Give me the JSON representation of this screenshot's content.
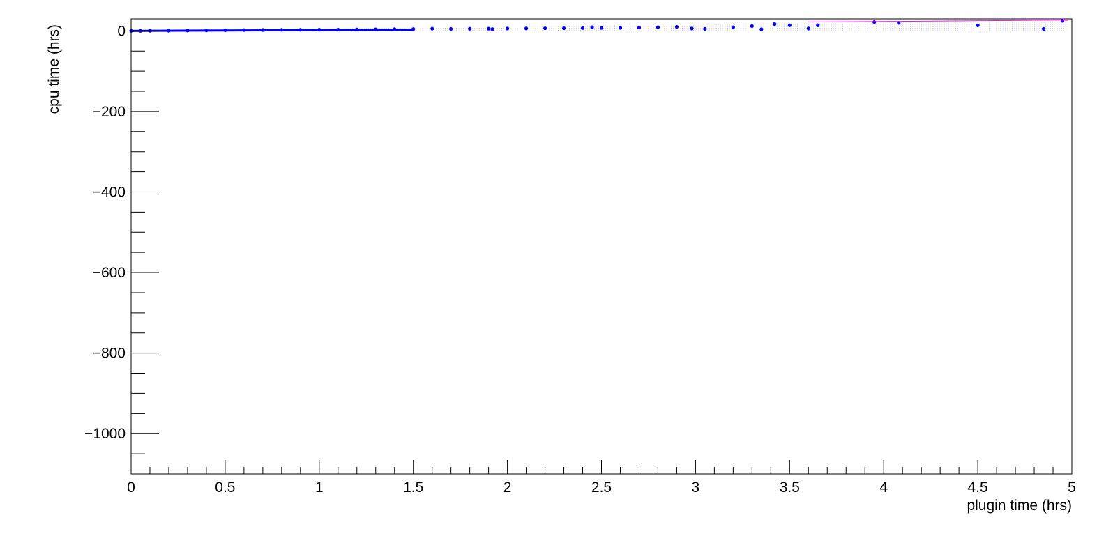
{
  "chart_data": {
    "type": "scatter",
    "title": "",
    "xlabel": "plugin time (hrs)",
    "ylabel": "cpu time (hrs)",
    "xlim": [
      0,
      5
    ],
    "ylim": [
      -1100,
      30
    ],
    "grid": false,
    "x_major_ticks": [
      0,
      0.5,
      1,
      1.5,
      2,
      2.5,
      3,
      3.5,
      4,
      4.5,
      5
    ],
    "x_tick_labels": [
      "0",
      "0.5",
      "1",
      "1.5",
      "2",
      "2.5",
      "3",
      "3.5",
      "4",
      "4.5",
      "5"
    ],
    "x_minor_step": 0.1,
    "y_major_ticks": [
      0,
      -200,
      -400,
      -600,
      -800,
      -1000
    ],
    "y_tick_labels": [
      "0",
      "−200",
      "−400",
      "−600",
      "−800",
      "−1000"
    ],
    "y_minor_step": 50,
    "point_color": "#0000ff",
    "band_colors": [
      "#ff00ff",
      "#00aa00",
      "#ff8800",
      "#000000",
      "#00aaaa"
    ],
    "series": [
      {
        "points": [
          [
            0.0,
            0
          ],
          [
            0.05,
            0.1
          ],
          [
            0.1,
            0.2
          ],
          [
            0.2,
            0.4
          ],
          [
            0.3,
            0.8
          ],
          [
            0.4,
            1.2
          ],
          [
            0.5,
            1.6
          ],
          [
            0.6,
            2
          ],
          [
            0.7,
            2.3
          ],
          [
            0.8,
            2.6
          ],
          [
            0.9,
            2.8
          ],
          [
            1.0,
            3.0
          ],
          [
            1.1,
            3.3
          ],
          [
            1.2,
            3.6
          ],
          [
            1.3,
            3.9
          ],
          [
            1.4,
            4.2
          ],
          [
            1.5,
            4.5
          ],
          [
            1.6,
            5.5
          ],
          [
            1.7,
            5.0
          ],
          [
            1.8,
            5.4
          ],
          [
            1.9,
            5.6
          ],
          [
            1.92,
            4.5
          ],
          [
            2.0,
            6.0
          ],
          [
            2.1,
            6.2
          ],
          [
            2.2,
            6.4
          ],
          [
            2.3,
            6.5
          ],
          [
            2.4,
            7.0
          ],
          [
            2.45,
            9.0
          ],
          [
            2.5,
            7.2
          ],
          [
            2.6,
            7.5
          ],
          [
            2.7,
            8.0
          ],
          [
            2.8,
            9.0
          ],
          [
            2.9,
            10.0
          ],
          [
            2.98,
            6.0
          ],
          [
            3.05,
            5.0
          ],
          [
            3.2,
            9.0
          ],
          [
            3.3,
            12.0
          ],
          [
            3.35,
            4.0
          ],
          [
            3.42,
            17.0
          ],
          [
            3.5,
            14.0
          ],
          [
            3.6,
            6.0
          ],
          [
            3.65,
            14.0
          ],
          [
            3.95,
            22.0
          ],
          [
            4.08,
            20.0
          ],
          [
            4.5,
            14.0
          ],
          [
            4.85,
            5.0
          ],
          [
            4.95,
            25.0
          ]
        ]
      }
    ]
  }
}
